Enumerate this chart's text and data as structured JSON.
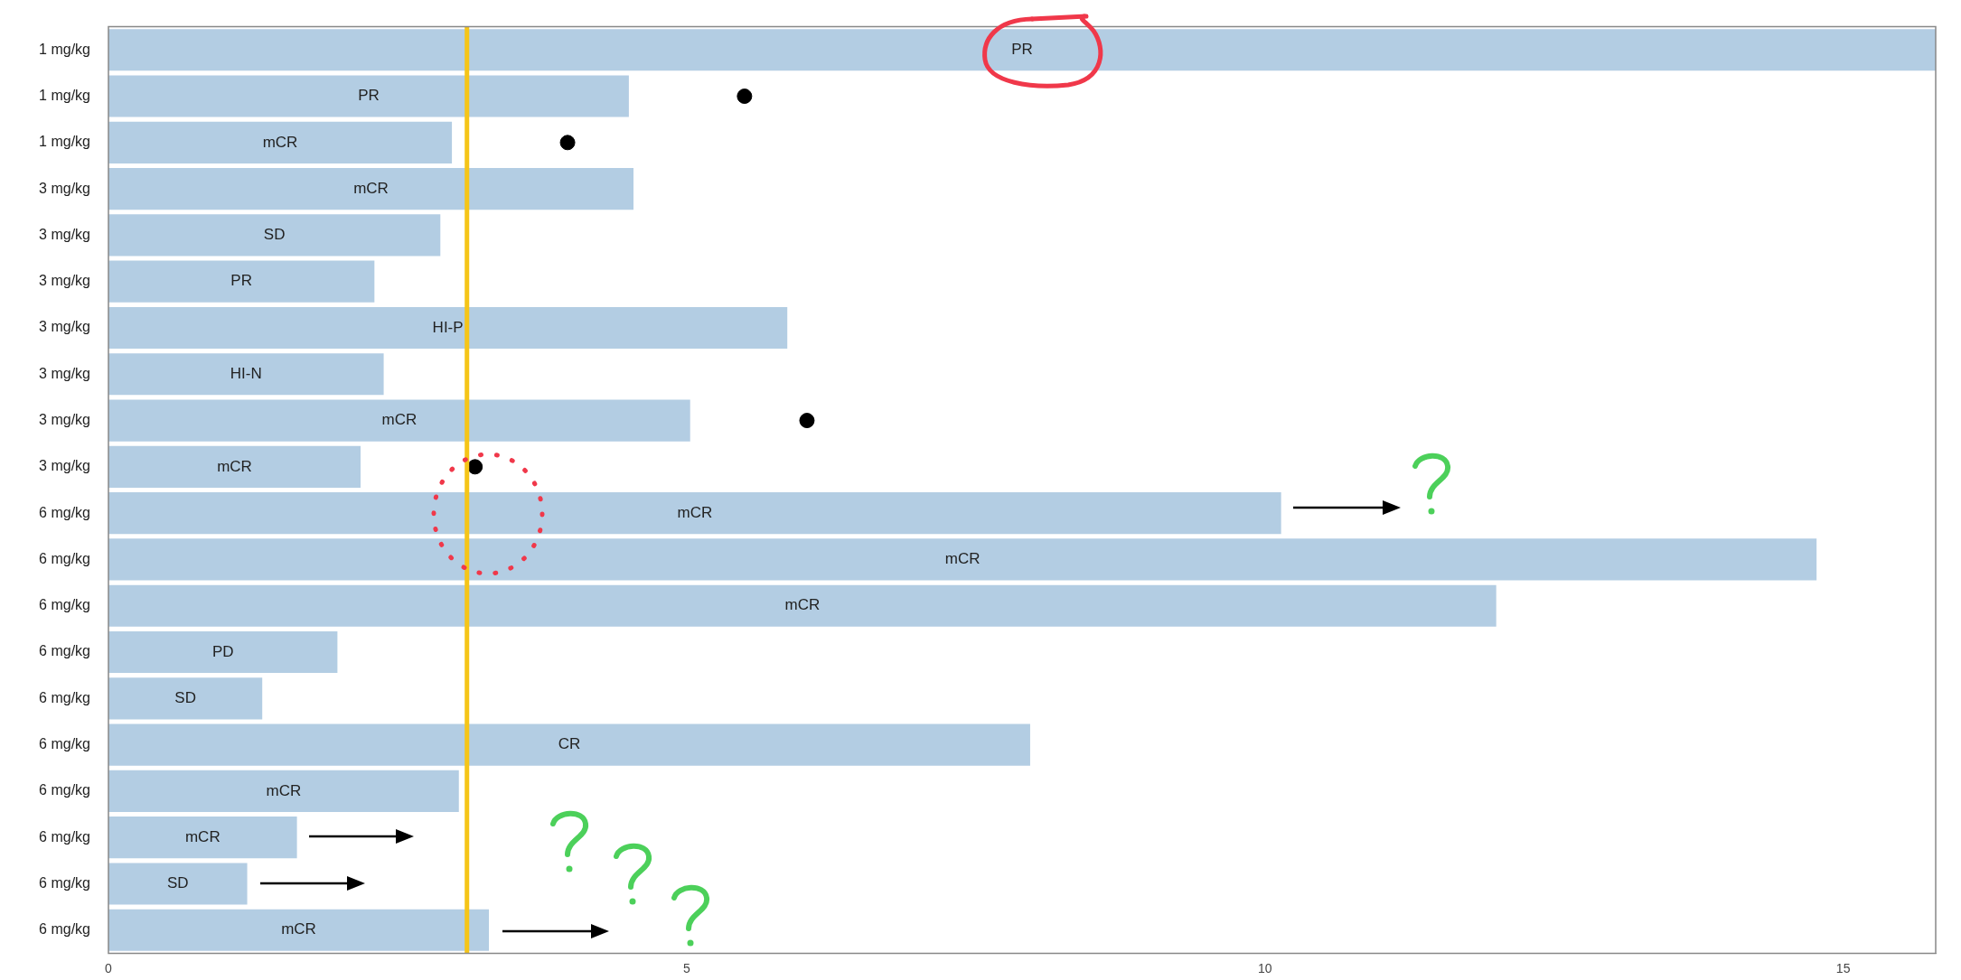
{
  "chart_data": {
    "type": "bar",
    "orientation": "horizontal",
    "categories": [
      "1 mg/kg",
      "1 mg/kg",
      "1 mg/kg",
      "3 mg/kg",
      "3 mg/kg",
      "3 mg/kg",
      "3 mg/kg",
      "3 mg/kg",
      "3 mg/kg",
      "3 mg/kg",
      "6 mg/kg",
      "6 mg/kg",
      "6 mg/kg",
      "6 mg/kg",
      "6 mg/kg",
      "6 mg/kg",
      "6 mg/kg",
      "6 mg/kg",
      "6 mg/kg",
      "6 mg/kg"
    ],
    "series": [
      {
        "color": "#b3cde3",
        "values": [
          15.8,
          4.5,
          2.97,
          4.54,
          2.87,
          2.3,
          5.87,
          2.38,
          5.03,
          2.18,
          10.14,
          14.77,
          12.0,
          1.98,
          1.33,
          7.97,
          3.03,
          1.63,
          1.2,
          3.29
        ],
        "value_labels": [
          "PR",
          "PR",
          "mCR",
          "mCR",
          "SD",
          "PR",
          "HI-P",
          "HI-N",
          "mCR",
          "mCR",
          "mCR",
          "mCR",
          "mCR",
          "PD",
          "SD",
          "CR",
          "mCR",
          "mCR",
          "SD",
          "mCR"
        ]
      },
      {
        "type": "scatter",
        "color": "#000000",
        "values": [
          null,
          5.5,
          3.97,
          null,
          null,
          null,
          null,
          null,
          6.04,
          3.17,
          null,
          null,
          null,
          null,
          null,
          null,
          null,
          null,
          null,
          null
        ]
      }
    ],
    "xlim": [
      0,
      15.8
    ],
    "xticks": [
      0,
      5,
      10,
      15
    ],
    "grid": false,
    "legend": false,
    "ref_lines": [
      {
        "axis": "x",
        "value": 3.1,
        "color": "#f5c518"
      }
    ]
  }
}
